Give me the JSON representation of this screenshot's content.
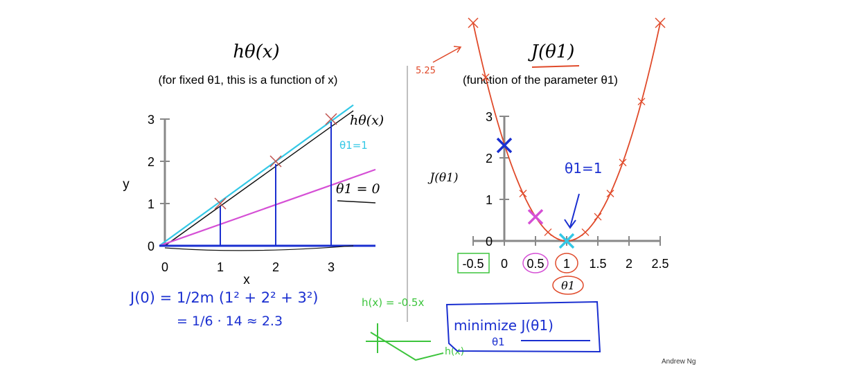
{
  "slide": {
    "author": "Andrew Ng",
    "colors": {
      "data_mark": "#c0504d",
      "cost_curve": "#e04a2a",
      "hand_blue": "#1a2fd0",
      "hand_cyan": "#33c8e6",
      "hand_magenta": "#d54fd5",
      "hand_green": "#3cc43c"
    }
  },
  "chart_data": [
    {
      "type": "scatter",
      "title": "hθ(x)",
      "subtitle": "(for fixed θ1, this is a function of x)",
      "xlabel": "x",
      "ylabel": "y",
      "xlim": [
        0,
        3.8
      ],
      "ylim": [
        0,
        3.3
      ],
      "x_ticks": [
        "0",
        "1",
        "2",
        "3"
      ],
      "y_ticks": [
        "0",
        "1",
        "2",
        "3"
      ],
      "points": [
        {
          "x": 1,
          "y": 1
        },
        {
          "x": 2,
          "y": 2
        },
        {
          "x": 3,
          "y": 3
        }
      ],
      "lines": [
        {
          "label": "hθ(x)",
          "annotation": "θ1=1",
          "slope": 1,
          "color": "#33c8e6"
        },
        {
          "slope": 0.5,
          "color": "#d54fd5"
        },
        {
          "label": "θ1 = 0",
          "slope": 0,
          "color": "#1a2fd0"
        }
      ],
      "grid": false
    },
    {
      "type": "line",
      "title": "J(θ1)",
      "subtitle": "(function of the parameter θ1)",
      "xlabel": "θ1",
      "ylabel": "J(θ1)",
      "xlim": [
        -0.5,
        2.5
      ],
      "ylim": [
        0,
        3
      ],
      "x_ticks": [
        "-0.5",
        "0",
        "0.5",
        "1",
        "1.5",
        "2",
        "2.5"
      ],
      "y_ticks": [
        "0",
        "1",
        "2",
        "3"
      ],
      "curve": "J(θ1) = 2.33·(1−θ1)²",
      "highlighted_points": [
        {
          "x": -0.5,
          "y": 5.25,
          "color": "#e04a2a"
        },
        {
          "x": 0,
          "y": 2.3,
          "color": "#1a2fd0"
        },
        {
          "x": 0.5,
          "y": 0.58,
          "color": "#d54fd5"
        },
        {
          "x": 1,
          "y": 0,
          "color": "#33c8e6"
        },
        {
          "x": 2.5,
          "y": 5.25,
          "color": "#e04a2a"
        }
      ],
      "grid": false
    }
  ],
  "annotations": {
    "left_theta_one": "θ1=1",
    "right_theta_one": "θ1=1",
    "value_525": "5.25",
    "cost_eq_line1": "J(0) = 1/2m (1² + 2² + 3²)",
    "cost_eq_line2": "= 1/6 · 14 ≈ 2.3",
    "hx_eq": "h(x) = -0.5x",
    "hx_label": "h(x)",
    "minimize": "minimize J(θ1)",
    "minimize_sub": "θ1"
  }
}
